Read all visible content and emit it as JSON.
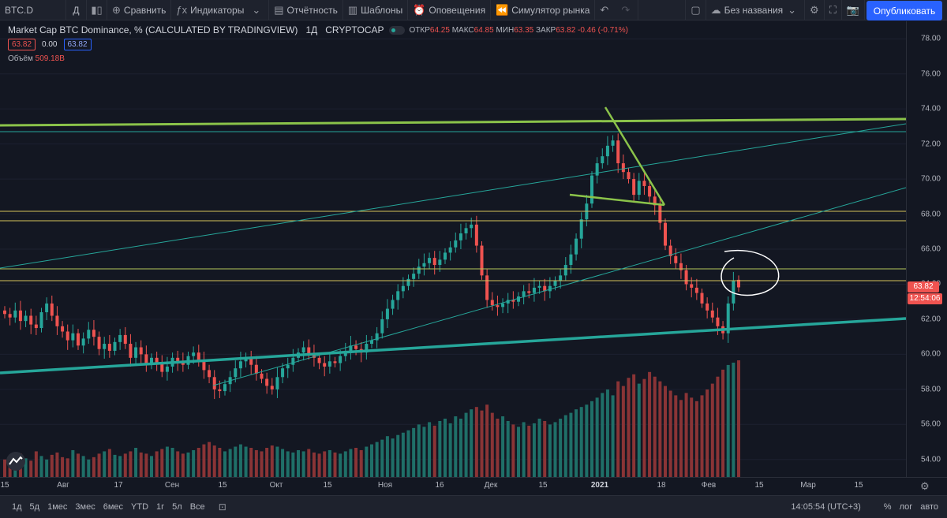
{
  "toolbar": {
    "symbol": "BTC.D",
    "interval": "Д",
    "compare": "Сравнить",
    "indicators": "Индикаторы",
    "reports": "Отчётность",
    "templates": "Шаблоны",
    "alerts": "Оповещения",
    "simulator": "Симулятор рынка",
    "layout_name": "Без названия",
    "publish": "Опубликовать"
  },
  "legend": {
    "title": "Market Cap BTC Dominance, % (CALCULATED BY TRADINGVIEW)",
    "interval": "1Д",
    "exchange": "CRYPTOCAP",
    "open_label": "ОТКР",
    "open": "64.25",
    "high_label": "МАКС",
    "high": "64.85",
    "low_label": "МИН",
    "low": "63.35",
    "close_label": "ЗАКР",
    "close": "63.82",
    "change": "-0.46 (-0.71%)",
    "bid": "63.82",
    "spread": "0.00",
    "ask": "63.82",
    "volume_label": "Объём",
    "volume": "509.18B"
  },
  "price_axis": {
    "ticks": [
      "78.00",
      "76.00",
      "74.00",
      "72.00",
      "70.00",
      "68.00",
      "66.00",
      "64.00",
      "62.00",
      "60.00",
      "58.00",
      "56.00",
      "54.00"
    ],
    "last_price": "63.82",
    "countdown": "12:54:06"
  },
  "time_axis": {
    "ticks": [
      "15",
      "Авг",
      "17",
      "Сен",
      "15",
      "Окт",
      "15",
      "Ноя",
      "16",
      "Дек",
      "15",
      "2021",
      "18",
      "Фев",
      "15",
      "Мар",
      "15"
    ]
  },
  "bottom_bar": {
    "ranges": [
      "1д",
      "5д",
      "1мес",
      "3мес",
      "6мес",
      "YTD",
      "1г",
      "5л",
      "Все"
    ],
    "clock": "14:05:54 (UTC+3)",
    "percent": "%",
    "log": "лог",
    "auto": "авто"
  },
  "colors": {
    "background": "#131722",
    "up": "#26a69a",
    "down": "#ef5350",
    "trend_green": "#8bc34a",
    "teal_line": "#26a69a",
    "level_yellow": "#d4c35a"
  },
  "chart_data": {
    "type": "candlestick",
    "ylim": [
      53,
      79
    ],
    "closes": [
      62.3,
      62.1,
      62.5,
      61.9,
      62.2,
      61.7,
      61.5,
      62.4,
      62.9,
      62.2,
      61.6,
      61.3,
      60.8,
      61.2,
      60.5,
      60.9,
      61.4,
      61.0,
      60.3,
      60.6,
      60.2,
      60.7,
      61.1,
      60.6,
      59.8,
      60.4,
      60.0,
      59.4,
      59.8,
      59.5,
      59.0,
      59.3,
      59.8,
      59.6,
      59.4,
      59.9,
      60.1,
      59.6,
      59.1,
      58.7,
      58.0,
      57.9,
      58.3,
      58.7,
      59.2,
      59.6,
      59.8,
      59.4,
      58.9,
      58.6,
      58.2,
      58.0,
      58.7,
      59.2,
      59.4,
      59.8,
      60.1,
      60.4,
      60.0,
      59.8,
      59.5,
      59.3,
      59.6,
      59.5,
      59.9,
      60.2,
      60.5,
      60.3,
      60.1,
      60.6,
      60.8,
      61.2,
      62.0,
      62.6,
      63.1,
      63.6,
      63.9,
      64.3,
      64.6,
      65.0,
      65.2,
      65.5,
      65.1,
      65.4,
      65.8,
      66.1,
      66.5,
      66.9,
      67.2,
      67.4,
      66.2,
      64.5,
      63.1,
      62.8,
      62.7,
      62.9,
      63.1,
      63.0,
      63.3,
      63.6,
      63.5,
      63.8,
      63.9,
      63.6,
      63.9,
      64.2,
      64.5,
      65.1,
      65.7,
      66.6,
      67.7,
      68.6,
      70.2,
      70.9,
      71.3,
      71.9,
      72.2,
      70.9,
      70.4,
      70.0,
      69.1,
      69.9,
      69.6,
      69.0,
      68.5,
      67.5,
      66.2,
      65.6,
      65.2,
      64.8,
      64.0,
      63.8,
      63.5,
      62.9,
      62.5,
      62.1,
      61.6,
      61.2,
      62.9,
      64.2,
      63.82
    ],
    "volume_levels": [
      0.15,
      0.18,
      0.12,
      0.2,
      0.16,
      0.14,
      0.22,
      0.18,
      0.15,
      0.19,
      0.21,
      0.17,
      0.16,
      0.23,
      0.2,
      0.18,
      0.15,
      0.17,
      0.2,
      0.22,
      0.24,
      0.19,
      0.18,
      0.2,
      0.22,
      0.25,
      0.21,
      0.2,
      0.18,
      0.22,
      0.24,
      0.26,
      0.25,
      0.22,
      0.2,
      0.21,
      0.23,
      0.25,
      0.28,
      0.3,
      0.27,
      0.25,
      0.22,
      0.24,
      0.26,
      0.28,
      0.26,
      0.25,
      0.23,
      0.22,
      0.25,
      0.27,
      0.26,
      0.24,
      0.22,
      0.21,
      0.23,
      0.22,
      0.24,
      0.21,
      0.2,
      0.22,
      0.23,
      0.21,
      0.2,
      0.22,
      0.24,
      0.25,
      0.23,
      0.26,
      0.28,
      0.3,
      0.32,
      0.35,
      0.33,
      0.36,
      0.38,
      0.4,
      0.42,
      0.45,
      0.43,
      0.47,
      0.44,
      0.48,
      0.5,
      0.46,
      0.52,
      0.5,
      0.55,
      0.58,
      0.6,
      0.57,
      0.62,
      0.55,
      0.5,
      0.52,
      0.48,
      0.45,
      0.43,
      0.47,
      0.44,
      0.46,
      0.5,
      0.48,
      0.45,
      0.47,
      0.5,
      0.53,
      0.55,
      0.58,
      0.6,
      0.62,
      0.65,
      0.68,
      0.72,
      0.75,
      0.7,
      0.82,
      0.78,
      0.85,
      0.88,
      0.8,
      0.84,
      0.9,
      0.86,
      0.82,
      0.78,
      0.74,
      0.7,
      0.66,
      0.72,
      0.68,
      0.65,
      0.7,
      0.75,
      0.8,
      0.86,
      0.92,
      0.96,
      0.98,
      1.0
    ]
  }
}
